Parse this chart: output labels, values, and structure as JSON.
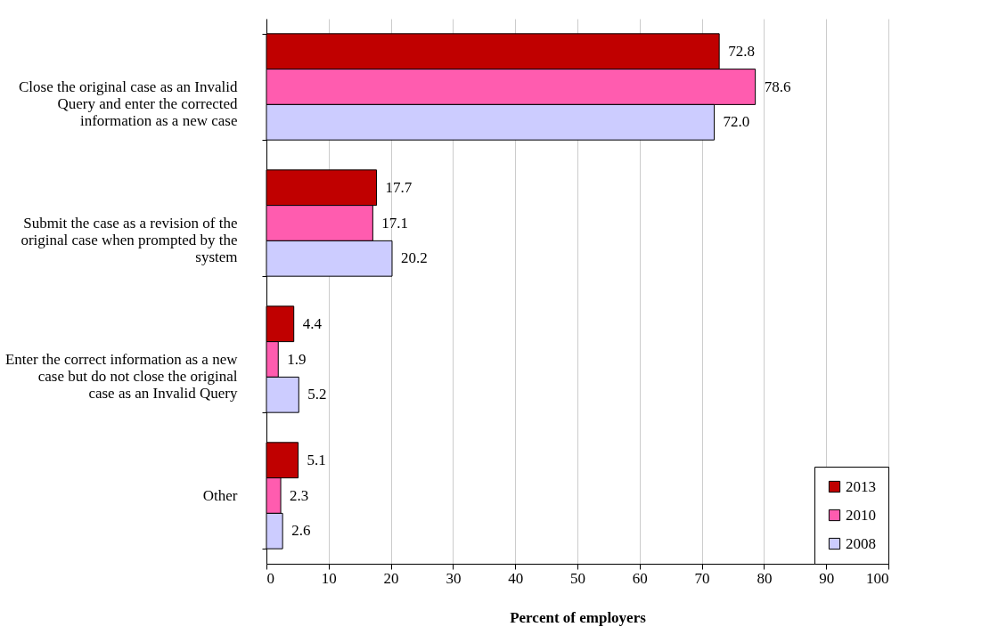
{
  "chart_data": {
    "type": "bar",
    "orientation": "horizontal",
    "xlabel": "Percent of employers",
    "categories": [
      "Close the original case as an Invalid Query and enter the corrected information as a new case",
      "Submit the case as a revision of the original case when prompted by the system",
      "Enter the correct information as a new case but do not close the original case as an Invalid Query",
      "Other"
    ],
    "series": [
      {
        "name": "2013",
        "color": "#c00000",
        "values": [
          72.8,
          17.7,
          4.4,
          5.1
        ],
        "value_labels": [
          "72.8",
          "17.7",
          "4.4",
          "5.1"
        ]
      },
      {
        "name": "2010",
        "color": "#ff5caf",
        "values": [
          78.6,
          17.1,
          1.9,
          2.3
        ],
        "value_labels": [
          "78.6",
          "17.1",
          "1.9",
          "2.3"
        ]
      },
      {
        "name": "2008",
        "color": "#ccccff",
        "values": [
          72.0,
          20.2,
          5.2,
          2.6
        ],
        "value_labels": [
          "72.0",
          "20.2",
          "5.2",
          "2.6"
        ]
      }
    ],
    "xlim": [
      0,
      100
    ],
    "xticks": [
      0,
      10,
      20,
      30,
      40,
      50,
      60,
      70,
      80,
      90,
      100
    ],
    "grid": "x",
    "legend": "bottom right"
  }
}
